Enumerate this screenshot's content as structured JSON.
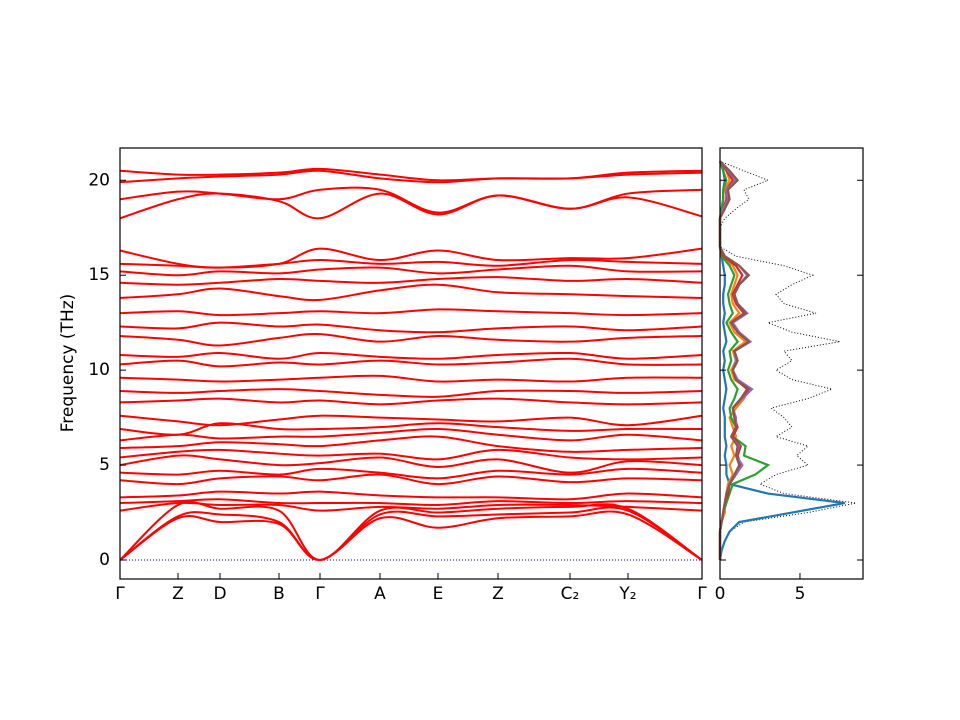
{
  "chart_data": [
    {
      "type": "line",
      "y_label": "Frequency (THz)",
      "color": "#ff0000",
      "x": [
        0,
        0.58,
        1.0,
        1.59,
        2.0,
        2.6,
        3.18,
        3.78,
        4.5,
        5.08,
        5.82
      ],
      "xlim": [
        0,
        5.82
      ],
      "xticks": [
        {
          "value": 0,
          "label": "Γ"
        },
        {
          "value": 0.58,
          "label": "Z"
        },
        {
          "value": 1.0,
          "label": "D"
        },
        {
          "value": 1.59,
          "label": "B"
        },
        {
          "value": 2.0,
          "label": "Γ"
        },
        {
          "value": 2.6,
          "label": "A"
        },
        {
          "value": 3.18,
          "label": "E"
        },
        {
          "value": 3.78,
          "label": "Z"
        },
        {
          "value": 4.5,
          "label": "C₂"
        },
        {
          "value": 5.08,
          "label": "Y₂"
        },
        {
          "value": 5.82,
          "label": "Γ"
        }
      ],
      "ylim": [
        -1,
        21.7
      ],
      "yticks": [
        0,
        5,
        10,
        15,
        20
      ],
      "series": [
        {
          "values": [
            0,
            2.2,
            2.0,
            1.9,
            0,
            2.2,
            1.7,
            2.2,
            2.3,
            2.4,
            0
          ]
        },
        {
          "values": [
            0,
            2.3,
            2.4,
            2.0,
            0,
            2.4,
            2.3,
            2.4,
            2.5,
            2.6,
            0
          ]
        },
        {
          "values": [
            0,
            2.9,
            2.7,
            2.6,
            0,
            2.6,
            2.5,
            2.7,
            2.8,
            2.7,
            0
          ]
        },
        {
          "values": [
            2.6,
            3.0,
            2.9,
            2.9,
            2.6,
            2.8,
            2.7,
            2.9,
            2.9,
            2.8,
            2.6
          ]
        },
        {
          "values": [
            3.0,
            3.1,
            3.2,
            3.0,
            3.0,
            3.0,
            2.9,
            3.1,
            3.0,
            3.1,
            3.0
          ]
        },
        {
          "values": [
            3.3,
            3.4,
            3.6,
            3.5,
            3.6,
            3.4,
            3.3,
            3.3,
            3.2,
            3.5,
            3.3
          ]
        },
        {
          "values": [
            4.2,
            4.0,
            4.3,
            4.4,
            4.2,
            4.5,
            4.0,
            4.4,
            4.1,
            4.3,
            4.2
          ]
        },
        {
          "values": [
            4.6,
            4.5,
            4.7,
            4.5,
            4.8,
            4.6,
            4.3,
            4.7,
            4.5,
            4.8,
            4.6
          ]
        },
        {
          "values": [
            5.0,
            5.5,
            5.3,
            5.0,
            5.1,
            5.4,
            4.9,
            5.3,
            4.6,
            5.2,
            5.0
          ]
        },
        {
          "values": [
            5.4,
            5.7,
            5.8,
            5.6,
            5.5,
            5.6,
            5.3,
            5.8,
            5.4,
            5.3,
            5.4
          ]
        },
        {
          "values": [
            5.9,
            6.0,
            6.2,
            6.1,
            6.0,
            6.3,
            6.5,
            6.0,
            5.7,
            5.8,
            5.9
          ]
        },
        {
          "values": [
            6.3,
            6.6,
            6.4,
            6.5,
            6.5,
            6.7,
            6.9,
            6.6,
            6.3,
            6.6,
            6.3
          ]
        },
        {
          "values": [
            6.9,
            6.6,
            7.2,
            6.9,
            6.9,
            7.0,
            7.2,
            7.0,
            6.8,
            6.9,
            6.9
          ]
        },
        {
          "values": [
            7.6,
            7.3,
            7.1,
            7.4,
            7.6,
            7.5,
            7.4,
            7.3,
            7.5,
            7.1,
            7.6
          ]
        },
        {
          "values": [
            8.3,
            8.4,
            8.5,
            8.3,
            8.4,
            8.2,
            8.4,
            8.5,
            8.3,
            8.2,
            8.3
          ]
        },
        {
          "values": [
            8.9,
            8.8,
            8.9,
            9.0,
            8.9,
            8.7,
            8.6,
            8.9,
            8.9,
            8.8,
            8.9
          ]
        },
        {
          "values": [
            9.6,
            9.5,
            9.4,
            9.5,
            9.6,
            9.7,
            9.4,
            9.5,
            9.4,
            9.6,
            9.6
          ]
        },
        {
          "values": [
            10.3,
            10.5,
            10.2,
            10.4,
            10.3,
            10.5,
            10.3,
            10.4,
            10.6,
            10.3,
            10.3
          ]
        },
        {
          "values": [
            10.8,
            10.7,
            10.9,
            10.6,
            10.9,
            10.7,
            10.6,
            10.8,
            10.9,
            10.6,
            10.8
          ]
        },
        {
          "values": [
            11.8,
            11.6,
            11.3,
            11.7,
            11.9,
            11.5,
            11.8,
            11.6,
            11.5,
            11.7,
            11.8
          ]
        },
        {
          "values": [
            12.3,
            12.2,
            12.5,
            12.3,
            12.4,
            12.1,
            12.0,
            12.2,
            12.3,
            12.1,
            12.3
          ]
        },
        {
          "values": [
            13.0,
            13.1,
            12.9,
            13.0,
            13.1,
            13.0,
            13.2,
            13.1,
            13.0,
            12.9,
            13.0
          ]
        },
        {
          "values": [
            13.8,
            14.0,
            14.3,
            13.9,
            13.7,
            14.2,
            14.5,
            14.1,
            14.0,
            13.9,
            13.8
          ]
        },
        {
          "values": [
            14.6,
            14.5,
            14.6,
            14.8,
            14.7,
            14.6,
            14.8,
            14.9,
            14.7,
            14.8,
            14.6
          ]
        },
        {
          "values": [
            15.2,
            15.0,
            15.2,
            15.1,
            15.3,
            15.4,
            15.1,
            15.3,
            15.5,
            15.2,
            15.2
          ]
        },
        {
          "values": [
            15.6,
            15.5,
            15.4,
            15.6,
            15.8,
            15.6,
            15.7,
            15.5,
            15.8,
            15.7,
            15.6
          ]
        },
        {
          "values": [
            16.3,
            15.6,
            15.4,
            15.6,
            16.4,
            15.8,
            16.3,
            15.8,
            15.9,
            15.9,
            16.4
          ]
        },
        {
          "values": [
            18.0,
            19.0,
            19.3,
            18.9,
            18.0,
            19.3,
            18.2,
            19.2,
            18.5,
            19.1,
            18.1
          ]
        },
        {
          "values": [
            19.0,
            19.4,
            19.3,
            19.0,
            19.5,
            19.5,
            18.3,
            19.2,
            18.5,
            19.3,
            19.5
          ]
        },
        {
          "values": [
            19.9,
            20.1,
            20.2,
            20.3,
            20.5,
            20.1,
            19.9,
            20.1,
            20.1,
            20.3,
            20.4
          ]
        },
        {
          "values": [
            20.5,
            20.3,
            20.3,
            20.4,
            20.6,
            20.3,
            20.0,
            20.1,
            20.1,
            20.4,
            20.5
          ]
        }
      ]
    },
    {
      "type": "dos",
      "y": [
        0,
        0.5,
        1,
        1.5,
        2,
        2.5,
        3,
        3.5,
        4,
        4.5,
        5,
        5.5,
        6,
        6.5,
        7,
        7.5,
        8,
        8.5,
        9,
        9.5,
        10,
        10.5,
        11,
        11.5,
        12,
        12.5,
        13,
        13.5,
        14,
        14.5,
        15,
        15.5,
        16,
        16.5,
        17,
        17.5,
        18,
        18.5,
        19,
        19.5,
        20,
        20.5,
        21
      ],
      "xlim": [
        0,
        8.94
      ],
      "xticks": [
        0,
        5
      ],
      "ylim": [
        -1,
        21.7
      ],
      "yticks": [
        0,
        5,
        10,
        15,
        20
      ],
      "series": [
        {
          "color": "#000000",
          "dotted": true,
          "values": [
            0,
            0.1,
            0.3,
            0.6,
            1.5,
            5.5,
            8.5,
            4,
            2.5,
            3.5,
            5.5,
            4.8,
            5.5,
            3.5,
            4.5,
            4,
            3.2,
            5.5,
            7,
            4.5,
            3.5,
            4.5,
            4,
            7.5,
            4.5,
            3,
            6,
            4,
            3.5,
            4.5,
            5.8,
            4,
            1,
            0,
            0,
            0,
            0.3,
            1,
            1.8,
            1.5,
            3,
            1.5,
            0
          ]
        },
        {
          "color": "#1f77b4",
          "values": [
            0,
            0.1,
            0.3,
            0.6,
            1.2,
            4.5,
            7.8,
            3,
            0.6,
            0.4,
            0.4,
            0.3,
            0.4,
            0.3,
            0.3,
            0.3,
            0.2,
            0.3,
            0.4,
            0.3,
            0.2,
            0.3,
            0.2,
            0.4,
            0.3,
            0.2,
            0.3,
            0.2,
            0.2,
            0.3,
            0.3,
            0.2,
            0.1,
            0,
            0,
            0,
            0,
            0.1,
            0.2,
            0.2,
            0.3,
            0.2,
            0
          ]
        },
        {
          "color": "#ff7f0e",
          "values": [
            0,
            0,
            0,
            0,
            0.1,
            0.3,
            0.3,
            0.4,
            0.5,
            0.8,
            0.6,
            0.9,
            0.7,
            1,
            0.8,
            0.6,
            1,
            1.5,
            1.8,
            0.9,
            0.7,
            1,
            0.8,
            1.6,
            0.9,
            0.6,
            1.2,
            0.8,
            0.7,
            0.9,
            1.1,
            0.8,
            0.2,
            0,
            0,
            0,
            0,
            0.3,
            0.5,
            0.3,
            0.6,
            0.4,
            0
          ]
        },
        {
          "color": "#2ca02c",
          "values": [
            0,
            0,
            0,
            0,
            0.1,
            0.2,
            0.4,
            0.6,
            0.8,
            2.2,
            3,
            1.5,
            1.6,
            0.8,
            1,
            0.7,
            0.6,
            0.9,
            1.1,
            0.7,
            0.5,
            0.7,
            0.6,
            1.1,
            0.7,
            0.4,
            0.8,
            0.6,
            0.5,
            0.7,
            0.9,
            0.6,
            0.1,
            0,
            0,
            0,
            0,
            0.1,
            0.2,
            0.2,
            0.4,
            0.2,
            0
          ]
        },
        {
          "color": "#d62728",
          "values": [
            0,
            0,
            0,
            0,
            0.1,
            0.2,
            0.3,
            0.5,
            0.6,
            1,
            1.3,
            1.1,
            1.3,
            0.8,
            1.1,
            0.9,
            0.8,
            1.3,
            1.7,
            1,
            0.8,
            1.1,
            0.9,
            1.8,
            1.1,
            0.7,
            1.5,
            1,
            0.8,
            1.1,
            1.4,
            1,
            0.2,
            0,
            0,
            0,
            0,
            0.2,
            0.4,
            0.4,
            0.8,
            0.4,
            0
          ]
        },
        {
          "color": "#9467bd",
          "values": [
            0,
            0,
            0,
            0,
            0.1,
            0.2,
            0.3,
            0.4,
            0.6,
            1,
            1.4,
            1,
            1.2,
            0.7,
            1,
            1,
            0.8,
            1.4,
            2,
            1.1,
            0.8,
            1,
            0.9,
            1.9,
            1.2,
            0.8,
            1.7,
            1.1,
            0.9,
            1.2,
            1.7,
            1.2,
            0.3,
            0,
            0,
            0,
            0,
            0.2,
            0.5,
            0.4,
            1,
            0.5,
            0
          ]
        },
        {
          "color": "#8c564b",
          "values": [
            0,
            0,
            0,
            0,
            0.1,
            0.2,
            0.3,
            0.4,
            0.6,
            0.9,
            1.2,
            1,
            1.1,
            0.7,
            1,
            0.9,
            0.8,
            1.3,
            1.8,
            1,
            0.8,
            1.1,
            0.9,
            1.8,
            1.1,
            0.7,
            1.6,
            1.1,
            0.9,
            1.2,
            1.8,
            1.2,
            0.3,
            0,
            0,
            0,
            0,
            0.3,
            0.6,
            0.5,
            1.1,
            0.6,
            0
          ]
        }
      ]
    }
  ]
}
